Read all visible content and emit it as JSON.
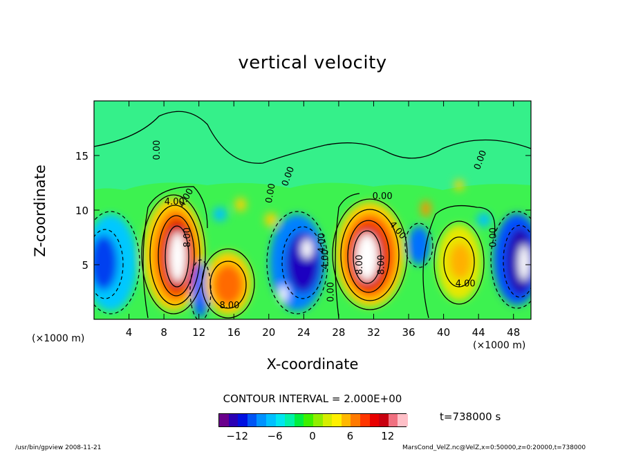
{
  "chart_data": {
    "type": "heatmap",
    "title": "vertical velocity",
    "xlabel": "X-coordinate",
    "ylabel": "Z-coordinate",
    "x_unit": "(×1000 m)",
    "xlim": [
      0,
      50
    ],
    "ylim": [
      0,
      20
    ],
    "x_ticks": [
      "4",
      "8",
      "12",
      "16",
      "20",
      "24",
      "28",
      "32",
      "36",
      "40",
      "44",
      "48"
    ],
    "y_ticks": [
      "5",
      "10",
      "15"
    ],
    "contour_labels": [
      "0.00",
      "4.00",
      "8.00",
      "8.00",
      "4.00",
      "0.00",
      "0.00",
      "0.00",
      "0.00",
      "4.00",
      "4.00",
      "8.00",
      "4.00",
      "0.00",
      "4.00",
      "8.00",
      "0.00"
    ],
    "contour_interval_text": "CONTOUR INTERVAL = 2.000E+00",
    "colorbar": {
      "ticks": [
        "−12",
        "−6",
        "0",
        "6",
        "12"
      ],
      "range": [
        -15,
        15
      ],
      "colors": [
        "#6a008c",
        "#2b00b4",
        "#0010e0",
        "#0055f5",
        "#0092ff",
        "#00c0ff",
        "#00e6f0",
        "#00f2a8",
        "#00ee40",
        "#3ef000",
        "#90ee00",
        "#d6ee00",
        "#fff000",
        "#ffb800",
        "#ff7a00",
        "#ff3600",
        "#e80000",
        "#c80010",
        "#f07080",
        "#ffc0c8"
      ]
    },
    "time_label": "t=738000 s",
    "footer_left": "/usr/bin/gpview  2008-11-21",
    "footer_right": "MarsCond_VelZ.nc@VelZ,x=0:50000,z=0:20000,t=738000",
    "cells": [
      {
        "x": 9.6,
        "z": 6.0,
        "value": 14
      },
      {
        "x": 30.4,
        "z": 6.0,
        "value": 14
      },
      {
        "x": 16.4,
        "z": 3.5,
        "value": 9
      },
      {
        "x": 42.0,
        "z": 5.5,
        "value": 7
      },
      {
        "x": 24.2,
        "z": 5.6,
        "value": -14
      },
      {
        "x": 2.5,
        "z": 5.0,
        "value": -8
      },
      {
        "x": 48.5,
        "z": 5.5,
        "value": -14
      },
      {
        "x": 37.4,
        "z": 7.0,
        "value": -6
      }
    ]
  }
}
